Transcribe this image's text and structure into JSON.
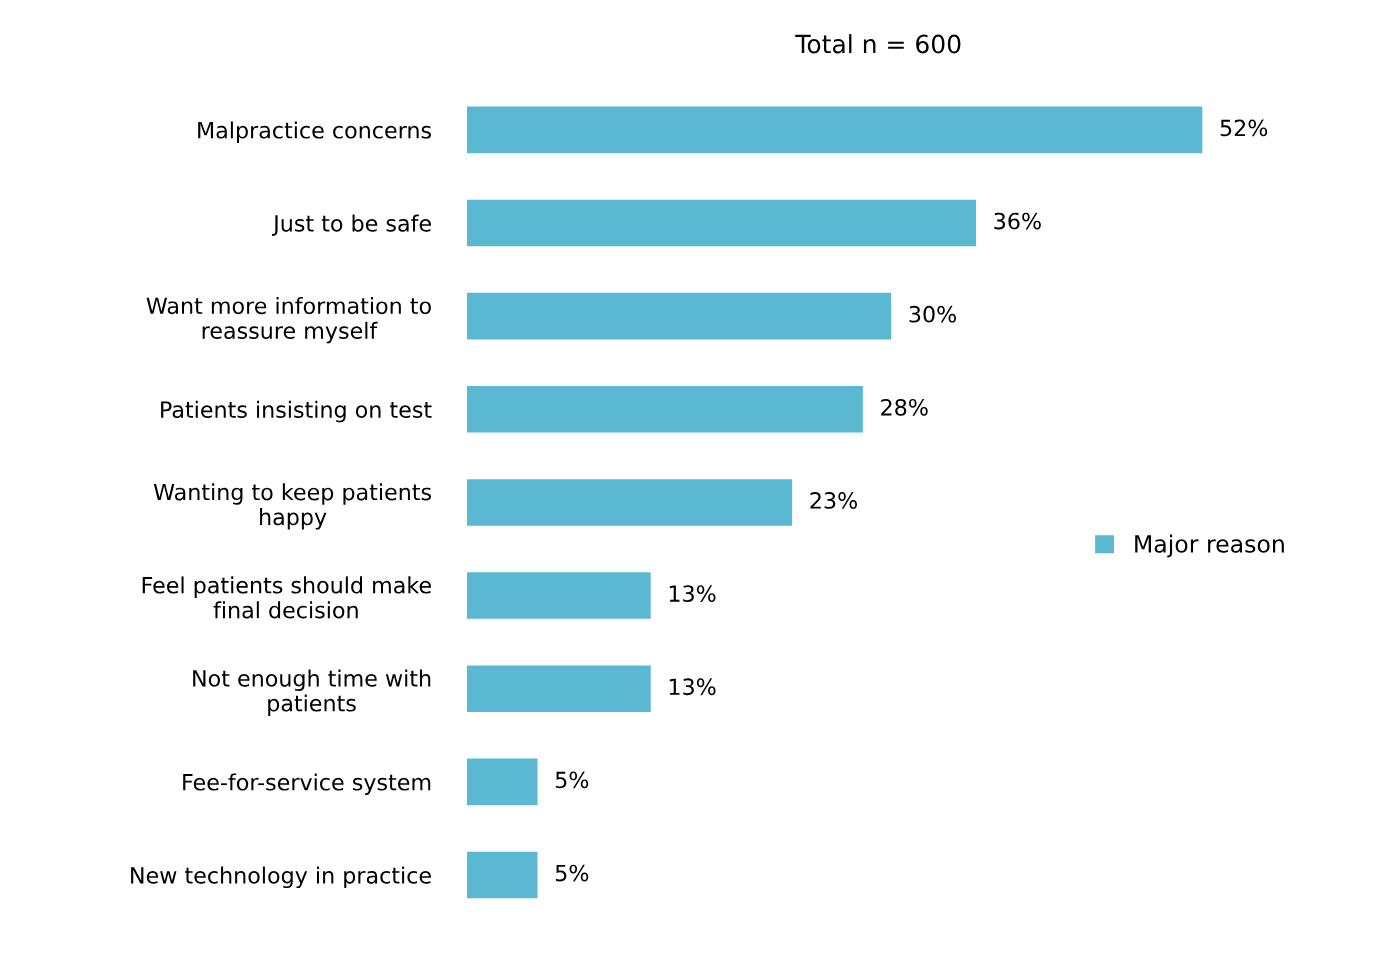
{
  "chart_data": {
    "type": "bar",
    "orientation": "horizontal",
    "title": "Total n = 600",
    "categories": [
      "Malpractice concerns",
      "Just to be safe",
      "Want more information to\nreassure myself",
      "Patients insisting on test",
      "Wanting to keep patients\nhappy",
      "Feel patients should make\nfinal decision",
      "Not enough time with\npatients",
      "Fee-for-service system",
      "New technology in practice"
    ],
    "series": [
      {
        "name": "Major reason",
        "color": "#5bb8d2",
        "values": [
          52,
          36,
          30,
          28,
          23,
          13,
          13,
          5,
          5
        ],
        "value_labels": [
          "52%",
          "36%",
          "30%",
          "28%",
          "23%",
          "13%",
          "13%",
          "5%",
          "5%"
        ]
      }
    ],
    "legend": "right",
    "grid": false
  }
}
